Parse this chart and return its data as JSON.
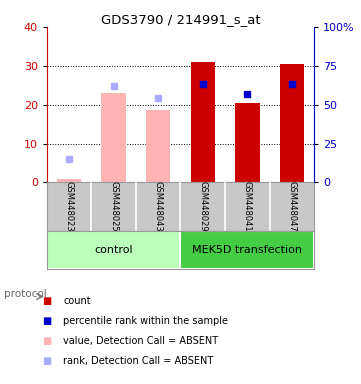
{
  "title": "GDS3790 / 214991_s_at",
  "samples": [
    "GSM448023",
    "GSM448025",
    "GSM448043",
    "GSM448029",
    "GSM448041",
    "GSM448047"
  ],
  "bar_values": [
    1.0,
    23.0,
    18.5,
    31.0,
    20.5,
    30.5
  ],
  "bar_absent": [
    true,
    true,
    true,
    false,
    false,
    false
  ],
  "absent_bar_color": "#ffb3b3",
  "present_bar_color": "#cc0000",
  "rank_values": [
    15,
    62,
    54,
    63,
    57,
    63
  ],
  "rank_absent": [
    true,
    true,
    true,
    false,
    false,
    false
  ],
  "absent_rank_color": "#aaaaff",
  "present_rank_color": "#0000cc",
  "ylim_left": [
    0,
    40
  ],
  "ylim_right": [
    0,
    100
  ],
  "yticks_left": [
    0,
    10,
    20,
    30,
    40
  ],
  "ytick_labels_left": [
    "0",
    "10",
    "20",
    "30",
    "40"
  ],
  "yticks_right": [
    0,
    25,
    50,
    75,
    100
  ],
  "ytick_labels_right": [
    "0",
    "25",
    "50",
    "75",
    "100%"
  ],
  "left_axis_color": "#cc0000",
  "right_axis_color": "#0000cc",
  "sample_label_area_color": "#c8c8c8",
  "group_control_color": "#bbffbb",
  "group_transfection_color": "#44cc44",
  "protocol_label": "protocol",
  "legend_items": [
    {
      "color": "#cc0000",
      "label": "count"
    },
    {
      "color": "#0000cc",
      "label": "percentile rank within the sample"
    },
    {
      "color": "#ffb3b3",
      "label": "value, Detection Call = ABSENT"
    },
    {
      "color": "#aaaaff",
      "label": "rank, Detection Call = ABSENT"
    }
  ]
}
